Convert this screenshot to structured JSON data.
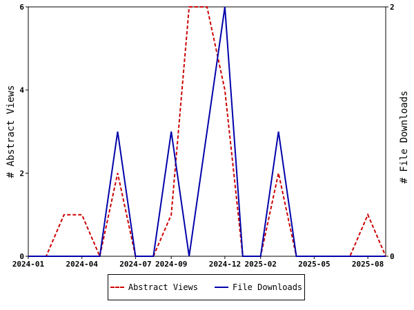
{
  "chart_data": {
    "type": "line",
    "title": "",
    "xlabel": "",
    "x_tick_labels": [
      "2024-01",
      "2024-04",
      "2024-07",
      "2024-09",
      "2024-12",
      "2025-02",
      "2025-05",
      "2025-08"
    ],
    "x_tick_months": [
      0,
      3,
      6,
      8,
      11,
      13,
      16,
      19
    ],
    "x_range_months": [
      0,
      20
    ],
    "ylabel_left": "# Abstract Views",
    "ylabel_right": "# File Downloads",
    "ylim_left": [
      0,
      6
    ],
    "ylim_right": [
      0,
      2
    ],
    "y_ticks_left": [
      0,
      2,
      4,
      6
    ],
    "y_ticks_right": [
      0,
      2
    ],
    "grid": false,
    "legend_position": "bottom",
    "series": [
      {
        "name": "Abstract Views",
        "axis": "left",
        "color": "#cc0000",
        "dash": true,
        "x": [
          "2024-01",
          "2024-02",
          "2024-03",
          "2024-04",
          "2024-05",
          "2024-06",
          "2024-07",
          "2024-08",
          "2024-09",
          "2024-10",
          "2024-11",
          "2024-12",
          "2025-01",
          "2025-02",
          "2025-03",
          "2025-04",
          "2025-05",
          "2025-06",
          "2025-07",
          "2025-08",
          "2025-09"
        ],
        "values": [
          0,
          0,
          1,
          1,
          0,
          2,
          0,
          0,
          1,
          6,
          6,
          4,
          0,
          0,
          2,
          0,
          0,
          0,
          0,
          1,
          0
        ]
      },
      {
        "name": "File Downloads",
        "axis": "right",
        "color": "#0000aa",
        "dash": false,
        "x": [
          "2024-01",
          "2024-02",
          "2024-03",
          "2024-04",
          "2024-05",
          "2024-06",
          "2024-07",
          "2024-08",
          "2024-09",
          "2024-10",
          "2024-11",
          "2024-12",
          "2025-01",
          "2025-02",
          "2025-03",
          "2025-04",
          "2025-05",
          "2025-06",
          "2025-07",
          "2025-08",
          "2025-09"
        ],
        "values": [
          0,
          0,
          0,
          0,
          0,
          1,
          0,
          0,
          1,
          0,
          1,
          2,
          0,
          0,
          1,
          0,
          0,
          0,
          0,
          0,
          0
        ]
      }
    ]
  },
  "legend": {
    "items": [
      {
        "label": "Abstract Views",
        "color": "#cc0000"
      },
      {
        "label": "File Downloads",
        "color": "#0000aa"
      }
    ]
  }
}
